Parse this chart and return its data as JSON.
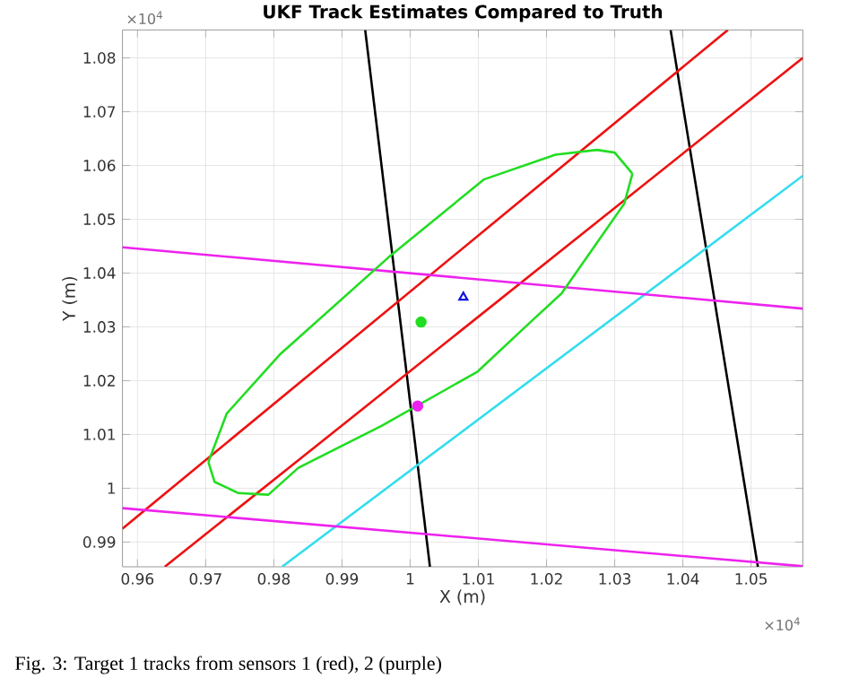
{
  "chart_data": {
    "type": "line",
    "title": "UKF Track Estimates Compared to Truth",
    "xlabel": "X (m)",
    "ylabel": "Y (m)",
    "xlim": [
      0.9578,
      1.0576
    ],
    "ylim": [
      0.9854,
      1.0852
    ],
    "xticks": [
      0.96,
      0.97,
      0.98,
      0.99,
      1,
      1.01,
      1.02,
      1.03,
      1.04,
      1.05
    ],
    "yticks": [
      0.99,
      1,
      1.01,
      1.02,
      1.03,
      1.04,
      1.05,
      1.06,
      1.07,
      1.08
    ],
    "grid": true,
    "annotations": [
      "×10$^{4}$",
      "×10$^{4}$",
      "Fig. 3: Target 1 tracks from sensors 1 (red), 2 (purple)"
    ],
    "series": [
      {
        "type": "line",
        "color": "#000000",
        "marker": "none",
        "x": [
          0.9934,
          1.0029
        ],
        "values": [
          1.0852,
          0.9854
        ]
      },
      {
        "type": "line",
        "color": "#000000",
        "marker": "none",
        "x": [
          1.0382,
          1.051
        ],
        "values": [
          1.0852,
          0.9854
        ]
      },
      {
        "type": "line",
        "color": "#ee1111",
        "marker": "none",
        "x": [
          0.9578,
          1.0466
        ],
        "values": [
          0.9925,
          1.0852
        ]
      },
      {
        "type": "line",
        "color": "#ee1111",
        "marker": "none",
        "x": [
          0.964,
          1.0576
        ],
        "values": [
          0.9854,
          1.08
        ]
      },
      {
        "type": "line",
        "color": "#33ddee",
        "marker": "none",
        "x": [
          0.9812,
          1.0576
        ],
        "values": [
          0.9854,
          1.0581
        ]
      },
      {
        "type": "line",
        "color": "#ee22ee",
        "marker": "none",
        "x": [
          0.9578,
          1.0576
        ],
        "values": [
          1.0448,
          1.0334
        ]
      },
      {
        "type": "line",
        "color": "#ee22ee",
        "marker": "none",
        "x": [
          0.9578,
          1.0576
        ],
        "values": [
          0.9963,
          0.9855
        ]
      },
      {
        "color": "#22dd22",
        "marker": "none",
        "x": [
          0.9704,
          0.9731,
          0.981,
          0.9968,
          1.0108,
          1.0213,
          1.0274,
          1.03,
          1.0326
        ],
        "values": [
          1.0049,
          1.0139,
          1.025,
          1.0429,
          1.0574,
          1.062,
          1.0629,
          1.0624,
          1.0585
        ]
      },
      {
        "color": "#22dd22",
        "marker": "none",
        "x": [
          0.9704,
          0.9713,
          0.9748,
          0.9792,
          0.9836,
          0.9958,
          1.0099,
          1.0174,
          1.0222,
          1.0314,
          1.0326
        ],
        "values": [
          1.0049,
          1.0012,
          0.9991,
          0.9988,
          1.0038,
          1.0116,
          1.0217,
          1.0306,
          1.0362,
          1.0529,
          1.0585
        ]
      },
      {
        "type": "scatter",
        "color": "#22dd22",
        "marker": "circle",
        "x": [
          1.0016
        ],
        "values": [
          1.0309
        ]
      },
      {
        "type": "scatter",
        "color": "#1111dd",
        "marker": "triangle",
        "x": [
          1.0078
        ],
        "values": [
          1.0355
        ]
      },
      {
        "type": "scatter",
        "color": "#ee22ee",
        "marker": "circle",
        "x": [
          1.0011
        ],
        "values": [
          1.0153
        ]
      }
    ]
  }
}
